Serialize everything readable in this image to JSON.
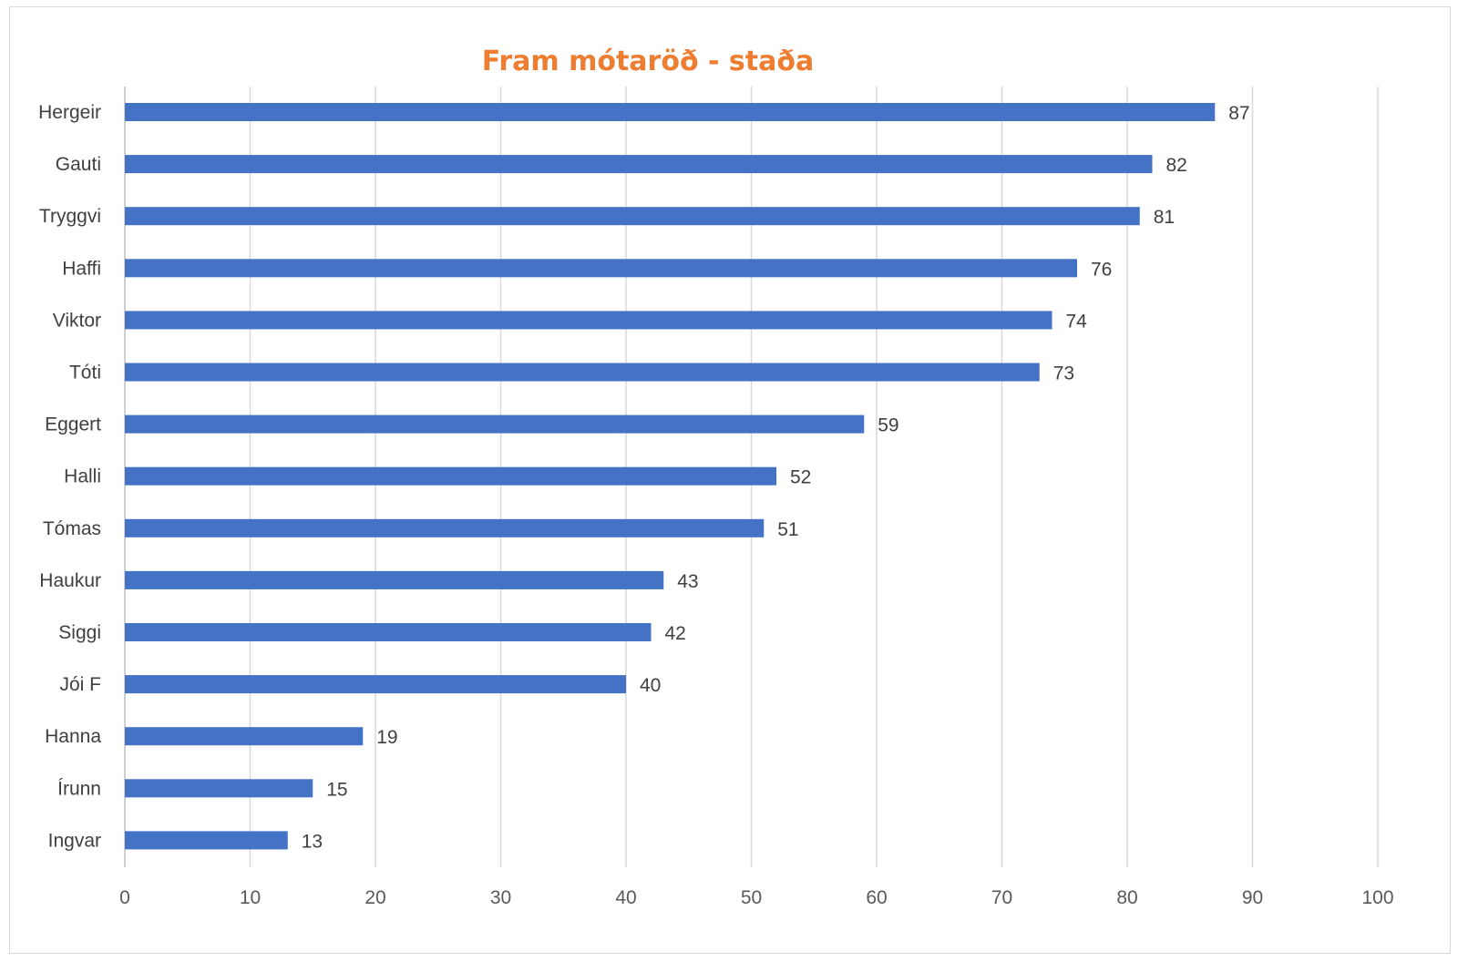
{
  "chart_data": {
    "type": "bar",
    "orientation": "horizontal",
    "title": "Fram mótaröð - staða",
    "xlabel": "",
    "ylabel": "",
    "xlim": [
      0,
      100
    ],
    "xticks": [
      "0",
      "10",
      "20",
      "30",
      "40",
      "50",
      "60",
      "70",
      "80",
      "90",
      "100"
    ],
    "grid": true,
    "legend": "none",
    "bar_color": "#4472c4",
    "title_color": "#ed7d31",
    "categories": [
      "Hergeir",
      "Gauti",
      "Tryggvi",
      "Haffi",
      "Viktor",
      "Tóti",
      "Eggert",
      "Halli",
      "Tómas",
      "Haukur",
      "Siggi",
      "Jói F",
      "Hanna",
      "Írunn",
      "Ingvar"
    ],
    "values": [
      87,
      82,
      81,
      76,
      74,
      73,
      59,
      52,
      51,
      43,
      42,
      40,
      19,
      15,
      13
    ],
    "data_labels": [
      "87",
      "82",
      "81",
      "76",
      "74",
      "73",
      "59",
      "52",
      "51",
      "43",
      "42",
      "40",
      "19",
      "15",
      "13"
    ]
  }
}
